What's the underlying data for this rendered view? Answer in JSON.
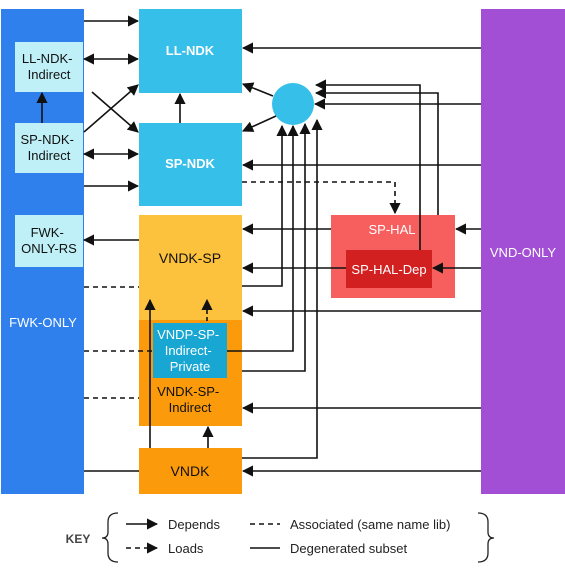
{
  "colors": {
    "fwk_only": "#2f80ed",
    "vnd_only": "#a24fd6",
    "ndk_light": "#bff0f7",
    "ndk_blue": "#36bfe9",
    "vndk_sp": "#fcc13d",
    "vndk_orange": "#fb9a0a",
    "indirect_private": "#18a6d2",
    "sp_hal": "#f75f5e",
    "sp_hal_dep": "#d21f1f",
    "line": "#111111"
  },
  "boxes": {
    "fwk_only": "FWK-ONLY",
    "vnd_only": "VND-ONLY",
    "ll_ndk_indirect": [
      "LL-NDK-",
      "Indirect"
    ],
    "sp_ndk_indirect": [
      "SP-NDK-",
      "Indirect"
    ],
    "fwk_only_rs": [
      "FWK-",
      "ONLY-RS"
    ],
    "ll_ndk": "LL-NDK",
    "sp_ndk": "SP-NDK",
    "vndk_sp": "VNDK-SP",
    "vndp_sp_indirect_private": [
      "VNDP-SP-",
      "Indirect-",
      "Private"
    ],
    "vndk_sp_indirect": [
      "VNDK-SP-",
      "Indirect"
    ],
    "vndk": "VNDK",
    "sp_hal": "SP-HAL",
    "sp_hal_dep": "SP-HAL-Dep"
  },
  "key": {
    "title": "KEY",
    "depends": "Depends",
    "loads": "Loads",
    "associated": "Associated (same name lib)",
    "degenerated": "Degenerated subset"
  }
}
